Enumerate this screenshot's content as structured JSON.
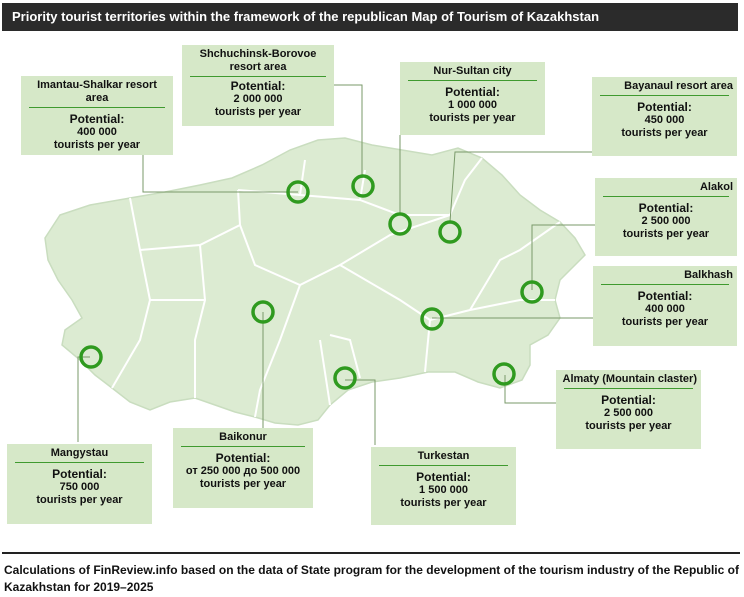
{
  "title": "Priority tourist  territories within the framework of the republican Map of Tourism  of Kazakhstan",
  "footer": "Calculations of FinReview.info based on the data of State program for the development of the tourism industry of the Republic of Kazakhstan for 2019–2025",
  "colors": {
    "map_fill": "#dcebd2",
    "map_stroke": "#ffffff",
    "marker": "#2f9a1f",
    "card": "#d6e8c8",
    "leader": "#7a9a6a"
  },
  "territories": [
    {
      "name": "Imantau-Shalkar resort area",
      "potential_label": "Potential:",
      "value": "400 000",
      "unit": "tourists per year"
    },
    {
      "name": "Shchuchinsk-Borovoe resort area",
      "potential_label": "Potential:",
      "value": "2 000 000",
      "unit": "tourists per year"
    },
    {
      "name": "Nur-Sultan city",
      "potential_label": "Potential:",
      "value": "1 000 000",
      "unit": "tourists per year"
    },
    {
      "name": "Bayanaul resort area",
      "potential_label": "Potential:",
      "value": "450 000",
      "unit": "tourists per year"
    },
    {
      "name": "Alakol",
      "potential_label": "Potential:",
      "value": "2 500 000",
      "unit": "tourists per year"
    },
    {
      "name": "Balkhash",
      "potential_label": "Potential:",
      "value": "400 000",
      "unit": "tourists per year"
    },
    {
      "name": "Almaty (Mountain claster)",
      "potential_label": "Potential:",
      "value": "2 500 000",
      "unit": "tourists per year"
    },
    {
      "name": "Turkestan",
      "potential_label": "Potential:",
      "value": "1 500 000",
      "unit": "tourists per year"
    },
    {
      "name": "Baikonur",
      "potential_label": "Potential:",
      "value": "от 250 000 до 500 000",
      "unit": "tourists per year"
    },
    {
      "name": "Mangystau",
      "potential_label": "Potential:",
      "value": "750 000",
      "unit": "tourists per year"
    }
  ]
}
